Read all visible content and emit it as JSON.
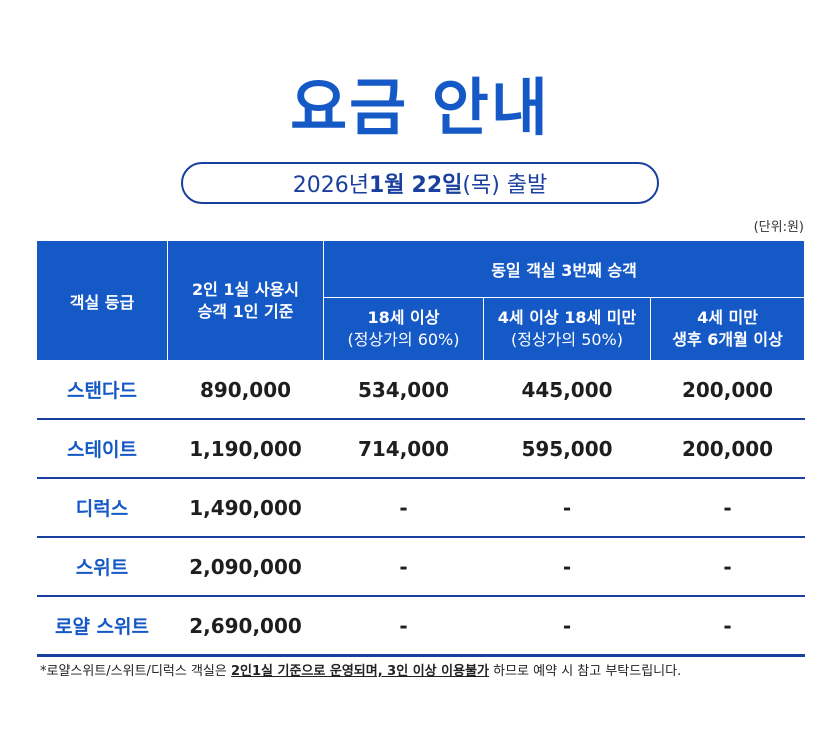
{
  "title": "요금 안내",
  "date": {
    "prefix": "2026년 ",
    "month": "1월",
    "space": " ",
    "day": "22일",
    "suffix": "(목) 출발"
  },
  "unit": "(단위:원)",
  "table": {
    "headers": {
      "grade": "객실 등급",
      "twin_line1": "2인 1실 사용시",
      "twin_line2": "승객 1인 기준",
      "third_group": "동일 객실 3번째 승객",
      "col1_line1": "18세 이상",
      "col1_line2": "(정상가의 60%)",
      "col2_line1": "4세 이상 18세 미만",
      "col2_line2": "(정상가의 50%)",
      "col3_line1": "4세 미만",
      "col3_line2": "생후 6개월 이상"
    },
    "rows": [
      {
        "grade": "스탠다드",
        "twin": "890,000",
        "adult": "534,000",
        "child": "445,000",
        "infant": "200,000"
      },
      {
        "grade": "스테이트",
        "twin": "1,190,000",
        "adult": "714,000",
        "child": "595,000",
        "infant": "200,000"
      },
      {
        "grade": "디럭스",
        "twin": "1,490,000",
        "adult": "-",
        "child": "-",
        "infant": "-"
      },
      {
        "grade": "스위트",
        "twin": "2,090,000",
        "adult": "-",
        "child": "-",
        "infant": "-"
      },
      {
        "grade": "로얄 스위트",
        "twin": "2,690,000",
        "adult": "-",
        "child": "-",
        "infant": "-"
      }
    ]
  },
  "note": {
    "prefix": "*로얄스위트/스위트/디럭스 객실은 ",
    "emph1": "2인1실 기준으로 운영되며, 3인 이상 이용불가",
    "suffix": " 하므로 예약 시 참고 부탁드립니다."
  }
}
